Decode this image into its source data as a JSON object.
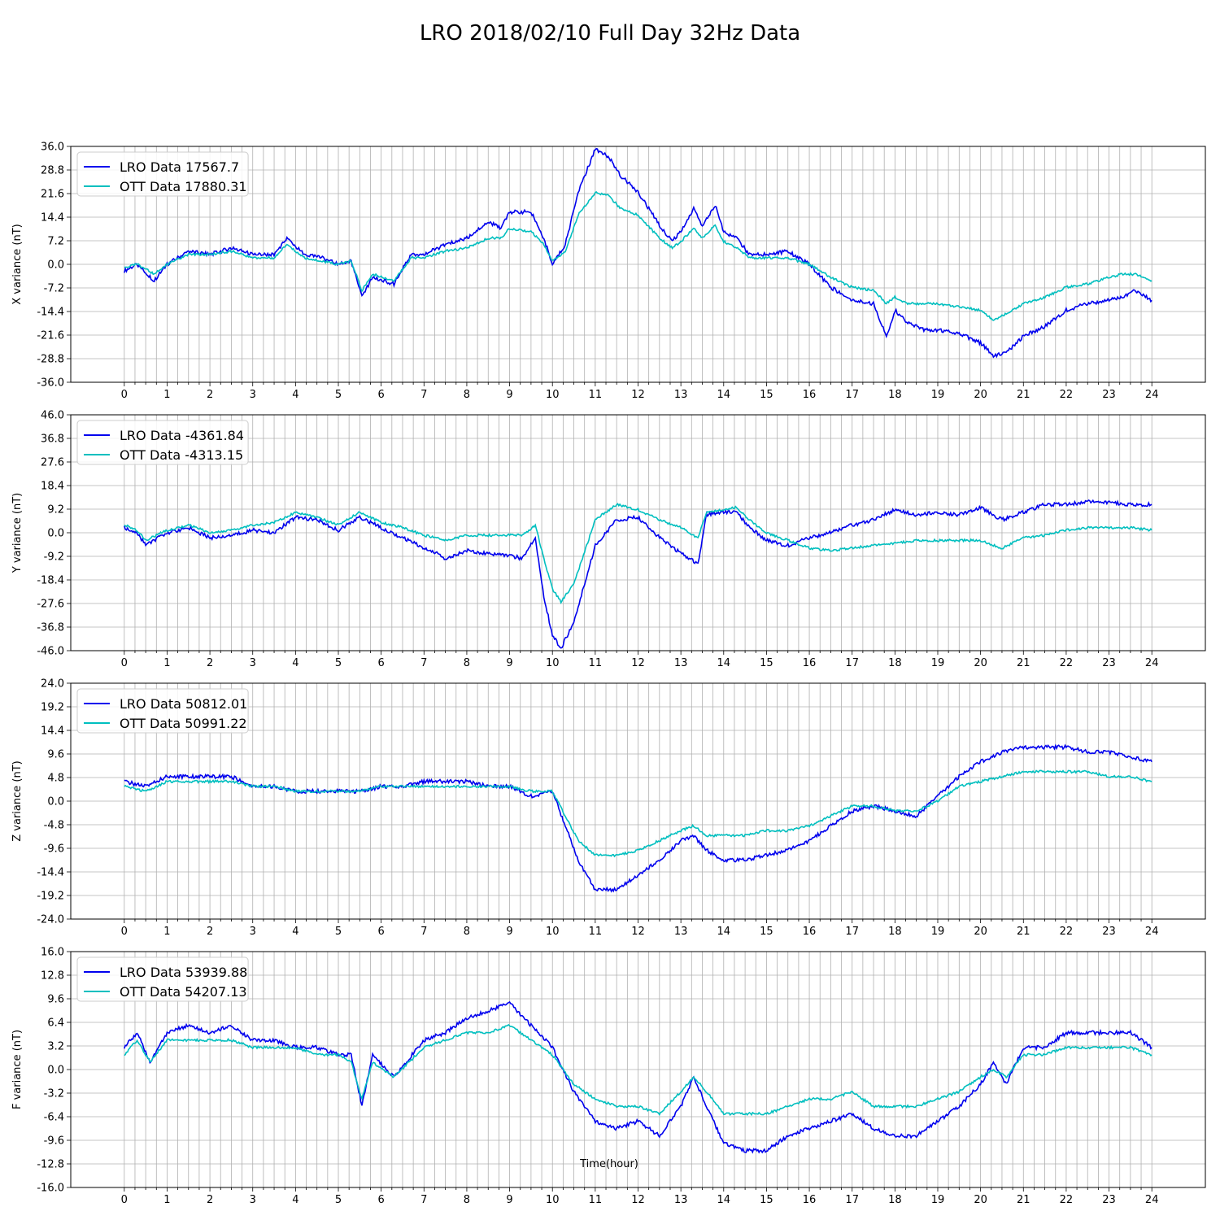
{
  "title": "LRO 2018/02/10 Full Day 32Hz Data",
  "colors": {
    "lro": "#0000ee",
    "ott": "#00bfbf",
    "grid": "#b0b0b0"
  },
  "chart_data": [
    {
      "type": "line",
      "ylabel": "X variance (nT)",
      "xlabel": "",
      "xlim": [
        -1.25,
        25.25
      ],
      "ylim": [
        -36.0,
        36.0
      ],
      "xticks": [
        0,
        1,
        2,
        3,
        4,
        5,
        6,
        7,
        8,
        9,
        10,
        11,
        12,
        13,
        14,
        15,
        16,
        17,
        18,
        19,
        20,
        21,
        22,
        23,
        24
      ],
      "yticks": [
        "36.0",
        "28.8",
        "21.6",
        "14.4",
        "7.2",
        "0.0",
        "-7.2",
        "-14.4",
        "-21.6",
        "-28.8",
        "-36.0"
      ],
      "grid": true,
      "legend": "upper-left",
      "series": [
        {
          "name": "LRO Data 17567.7",
          "color": "#0000ee",
          "x": [
            0,
            0.3,
            0.7,
            1,
            1.5,
            2,
            2.5,
            3,
            3.5,
            3.8,
            4.2,
            4.6,
            5,
            5.3,
            5.55,
            5.8,
            6.3,
            6.7,
            7,
            7.5,
            8,
            8.5,
            8.8,
            9,
            9.5,
            9.8,
            10,
            10.3,
            10.6,
            11,
            11.3,
            11.6,
            12,
            12.5,
            12.8,
            13,
            13.3,
            13.5,
            13.8,
            14,
            14.3,
            14.6,
            15,
            15.5,
            16,
            16.5,
            17,
            17.5,
            17.8,
            18,
            18.3,
            18.7,
            19,
            19.5,
            20,
            20.3,
            20.6,
            21,
            21.5,
            22,
            22.5,
            23,
            23.3,
            23.6,
            24
          ],
          "y": [
            -2,
            0,
            -5,
            0,
            4,
            3,
            5,
            3,
            3,
            8,
            3,
            2,
            0,
            1,
            -10,
            -4,
            -6,
            3,
            3,
            6,
            8,
            13,
            11,
            16,
            16,
            8,
            0,
            6,
            22,
            35,
            33,
            27,
            22,
            12,
            7,
            10,
            17,
            12,
            18,
            10,
            8,
            3,
            3,
            4,
            0,
            -7,
            -11,
            -12,
            -22,
            -14,
            -18,
            -20,
            -20,
            -21,
            -24,
            -28,
            -27,
            -22,
            -19,
            -14,
            -12,
            -11,
            -10,
            -8,
            -11
          ]
        },
        {
          "name": "OTT Data 17880.31",
          "color": "#00bfbf",
          "x": [
            0,
            0.3,
            0.7,
            1,
            1.5,
            2,
            2.5,
            3,
            3.5,
            3.8,
            4.2,
            4.6,
            5,
            5.3,
            5.55,
            5.8,
            6.3,
            6.7,
            7,
            7.5,
            8,
            8.5,
            8.8,
            9,
            9.5,
            9.8,
            10,
            10.3,
            10.6,
            11,
            11.3,
            11.6,
            12,
            12.5,
            12.8,
            13,
            13.3,
            13.5,
            13.8,
            14,
            14.3,
            14.6,
            15,
            15.5,
            16,
            16.5,
            17,
            17.5,
            17.8,
            18,
            18.3,
            18.7,
            19,
            19.5,
            20,
            20.3,
            20.6,
            21,
            21.5,
            22,
            22.5,
            23,
            23.3,
            23.6,
            24
          ],
          "y": [
            -1,
            0,
            -3,
            0,
            3,
            3,
            4,
            2,
            2,
            6,
            2,
            1,
            0,
            1,
            -8,
            -3,
            -5,
            2,
            2,
            4,
            5,
            8,
            8,
            11,
            10,
            6,
            1,
            4,
            15,
            22,
            21,
            17,
            15,
            8,
            5,
            7,
            11,
            8,
            12,
            7,
            5,
            2,
            2,
            2,
            0,
            -4,
            -7,
            -8,
            -12,
            -10,
            -12,
            -12,
            -12,
            -13,
            -14,
            -17,
            -15,
            -12,
            -10,
            -7,
            -6,
            -4,
            -3,
            -3,
            -5
          ]
        }
      ]
    },
    {
      "type": "line",
      "ylabel": "Y variance (nT)",
      "xlabel": "",
      "xlim": [
        -1.25,
        25.25
      ],
      "ylim": [
        -46.0,
        46.0
      ],
      "xticks": [
        0,
        1,
        2,
        3,
        4,
        5,
        6,
        7,
        8,
        9,
        10,
        11,
        12,
        13,
        14,
        15,
        16,
        17,
        18,
        19,
        20,
        21,
        22,
        23,
        24
      ],
      "yticks": [
        "46.0",
        "36.8",
        "27.6",
        "18.4",
        "9.2",
        "0.0",
        "-9.2",
        "-18.4",
        "-27.6",
        "-36.8",
        "-46.0"
      ],
      "grid": true,
      "legend": "upper-left",
      "series": [
        {
          "name": "LRO Data -4361.84",
          "color": "#0000ee",
          "x": [
            0,
            0.3,
            0.5,
            1,
            1.5,
            2,
            2.5,
            3,
            3.5,
            4,
            4.5,
            5,
            5.5,
            6,
            6.5,
            7,
            7.3,
            7.5,
            8,
            8.5,
            9,
            9.3,
            9.6,
            9.8,
            10,
            10.2,
            10.5,
            11,
            11.5,
            12,
            12.5,
            13,
            13.2,
            13.4,
            13.6,
            14,
            14.3,
            14.6,
            15,
            15.5,
            16,
            16.5,
            17,
            17.5,
            18,
            18.5,
            19,
            19.5,
            20,
            20.5,
            21,
            21.5,
            22,
            22.5,
            23,
            23.5,
            24
          ],
          "y": [
            2,
            0,
            -5,
            0,
            2,
            -2,
            -1,
            1,
            0,
            6,
            5,
            1,
            6,
            2,
            -2,
            -6,
            -8,
            -10,
            -7,
            -8,
            -9,
            -10,
            -2,
            -25,
            -40,
            -45,
            -35,
            -5,
            5,
            6,
            -2,
            -8,
            -10,
            -12,
            7,
            8,
            8,
            2,
            -3,
            -5,
            -2,
            0,
            3,
            5,
            9,
            7,
            8,
            7,
            10,
            5,
            8,
            11,
            11,
            12,
            12,
            11,
            11
          ]
        },
        {
          "name": "OTT Data -4313.15",
          "color": "#00bfbf",
          "x": [
            0,
            0.3,
            0.5,
            1,
            1.5,
            2,
            2.5,
            3,
            3.5,
            4,
            4.5,
            5,
            5.5,
            6,
            6.5,
            7,
            7.3,
            7.5,
            8,
            8.5,
            9,
            9.3,
            9.6,
            9.8,
            10,
            10.2,
            10.5,
            11,
            11.5,
            12,
            12.5,
            13,
            13.2,
            13.4,
            13.6,
            14,
            14.3,
            14.6,
            15,
            15.5,
            16,
            16.5,
            17,
            17.5,
            18,
            18.5,
            19,
            19.5,
            20,
            20.5,
            21,
            21.5,
            22,
            22.5,
            23,
            23.5,
            24
          ],
          "y": [
            3,
            1,
            -3,
            1,
            3,
            0,
            1,
            3,
            4,
            8,
            6,
            3,
            8,
            4,
            2,
            -1,
            -2,
            -3,
            -1,
            -1,
            -1,
            -1,
            3,
            -10,
            -22,
            -27,
            -20,
            5,
            11,
            9,
            5,
            2,
            0,
            -2,
            8,
            9,
            10,
            5,
            0,
            -3,
            -6,
            -7,
            -6,
            -5,
            -4,
            -3,
            -3,
            -3,
            -3,
            -6,
            -2,
            -1,
            1,
            2,
            2,
            2,
            1
          ]
        }
      ]
    },
    {
      "type": "line",
      "ylabel": "Z variance (nT)",
      "xlabel": "",
      "xlim": [
        -1.25,
        25.25
      ],
      "ylim": [
        -24.0,
        24.0
      ],
      "xticks": [
        0,
        1,
        2,
        3,
        4,
        5,
        6,
        7,
        8,
        9,
        10,
        11,
        12,
        13,
        14,
        15,
        16,
        17,
        18,
        19,
        20,
        21,
        22,
        23,
        24
      ],
      "yticks": [
        "24.0",
        "19.2",
        "14.4",
        "9.6",
        "4.8",
        "0.0",
        "-4.8",
        "-9.6",
        "-14.4",
        "-19.2",
        "-24.0"
      ],
      "grid": true,
      "legend": "upper-left",
      "series": [
        {
          "name": "LRO Data 50812.01",
          "color": "#0000ee",
          "x": [
            0,
            0.5,
            1,
            1.5,
            2,
            2.5,
            3,
            3.5,
            4,
            4.5,
            5,
            5.5,
            6,
            6.5,
            7,
            7.5,
            8,
            8.5,
            9,
            9.5,
            10,
            10.3,
            10.6,
            11,
            11.5,
            12,
            12.5,
            13,
            13.3,
            13.6,
            14,
            14.5,
            15,
            15.5,
            16,
            16.5,
            17,
            17.5,
            18,
            18.5,
            19,
            19.5,
            20,
            20.5,
            21,
            21.5,
            22,
            22.5,
            23,
            23.5,
            24
          ],
          "y": [
            4,
            3,
            5,
            5,
            5,
            5,
            3,
            3,
            2,
            2,
            2,
            2,
            3,
            3,
            4,
            4,
            4,
            3,
            3,
            1,
            2,
            -5,
            -12,
            -18,
            -18,
            -15,
            -12,
            -8,
            -7,
            -10,
            -12,
            -12,
            -11,
            -10,
            -8,
            -5,
            -2,
            -1,
            -2,
            -3,
            1,
            5,
            8,
            10,
            11,
            11,
            11,
            10,
            10,
            9,
            8
          ]
        },
        {
          "name": "OTT Data 50991.22",
          "color": "#00bfbf",
          "x": [
            0,
            0.5,
            1,
            1.5,
            2,
            2.5,
            3,
            3.5,
            4,
            4.5,
            5,
            5.5,
            6,
            6.5,
            7,
            7.5,
            8,
            8.5,
            9,
            9.5,
            10,
            10.3,
            10.6,
            11,
            11.5,
            12,
            12.5,
            13,
            13.3,
            13.6,
            14,
            14.5,
            15,
            15.5,
            16,
            16.5,
            17,
            17.5,
            18,
            18.5,
            19,
            19.5,
            20,
            20.5,
            21,
            21.5,
            22,
            22.5,
            23,
            23.5,
            24
          ],
          "y": [
            3,
            2,
            4,
            4,
            4,
            4,
            3,
            3,
            2,
            2,
            2,
            2,
            3,
            3,
            3,
            3,
            3,
            3,
            3,
            2,
            2,
            -3,
            -8,
            -11,
            -11,
            -10,
            -8,
            -6,
            -5,
            -7,
            -7,
            -7,
            -6,
            -6,
            -5,
            -3,
            -1,
            -1,
            -2,
            -2,
            0,
            3,
            4,
            5,
            6,
            6,
            6,
            6,
            5,
            5,
            4
          ]
        }
      ]
    },
    {
      "type": "line",
      "ylabel": "F variance (nT)",
      "xlabel": "Time(hour)",
      "xlim": [
        -1.25,
        25.25
      ],
      "ylim": [
        -16.0,
        16.0
      ],
      "xticks": [
        0,
        1,
        2,
        3,
        4,
        5,
        6,
        7,
        8,
        9,
        10,
        11,
        12,
        13,
        14,
        15,
        16,
        17,
        18,
        19,
        20,
        21,
        22,
        23,
        24
      ],
      "yticks": [
        "16.0",
        "12.8",
        "9.6",
        "6.4",
        "3.2",
        "0.0",
        "-3.2",
        "-6.4",
        "-9.6",
        "-12.8",
        "-16.0"
      ],
      "grid": true,
      "legend": "upper-left",
      "series": [
        {
          "name": "LRO Data 53939.88",
          "color": "#0000ee",
          "x": [
            0,
            0.3,
            0.6,
            1,
            1.5,
            2,
            2.5,
            3,
            3.5,
            4,
            4.5,
            5,
            5.3,
            5.55,
            5.8,
            6.3,
            7,
            7.5,
            8,
            8.5,
            9,
            9.5,
            10,
            10.5,
            11,
            11.5,
            12,
            12.5,
            13,
            13.3,
            13.6,
            14,
            14.5,
            15,
            15.5,
            16,
            16.5,
            17,
            17.5,
            18,
            18.5,
            19,
            19.5,
            20,
            20.3,
            20.6,
            21,
            21.5,
            22,
            22.5,
            23,
            23.5,
            24
          ],
          "y": [
            3,
            5,
            1,
            5,
            6,
            5,
            6,
            4,
            4,
            3,
            3,
            2,
            2,
            -5,
            2,
            -1,
            4,
            5,
            7,
            8,
            9,
            6,
            3,
            -3,
            -7,
            -8,
            -7,
            -9,
            -5,
            -1,
            -5,
            -10,
            -11,
            -11,
            -9,
            -8,
            -7,
            -6,
            -8,
            -9,
            -9,
            -7,
            -5,
            -2,
            1,
            -2,
            3,
            3,
            5,
            5,
            5,
            5,
            3
          ]
        },
        {
          "name": "OTT Data 54207.13",
          "color": "#00bfbf",
          "x": [
            0,
            0.3,
            0.6,
            1,
            1.5,
            2,
            2.5,
            3,
            3.5,
            4,
            4.5,
            5,
            5.3,
            5.55,
            5.8,
            6.3,
            7,
            7.5,
            8,
            8.5,
            9,
            9.5,
            10,
            10.5,
            11,
            11.5,
            12,
            12.5,
            13,
            13.3,
            13.6,
            14,
            14.5,
            15,
            15.5,
            16,
            16.5,
            17,
            17.5,
            18,
            18.5,
            19,
            19.5,
            20,
            20.3,
            20.6,
            21,
            21.5,
            22,
            22.5,
            23,
            23.5,
            24
          ],
          "y": [
            2,
            4,
            1,
            4,
            4,
            4,
            4,
            3,
            3,
            3,
            2,
            2,
            1,
            -4,
            1,
            -1,
            3,
            4,
            5,
            5,
            6,
            4,
            2,
            -2,
            -4,
            -5,
            -5,
            -6,
            -3,
            -1,
            -3,
            -6,
            -6,
            -6,
            -5,
            -4,
            -4,
            -3,
            -5,
            -5,
            -5,
            -4,
            -3,
            -1,
            0,
            -1,
            2,
            2,
            3,
            3,
            3,
            3,
            2
          ]
        }
      ]
    }
  ]
}
